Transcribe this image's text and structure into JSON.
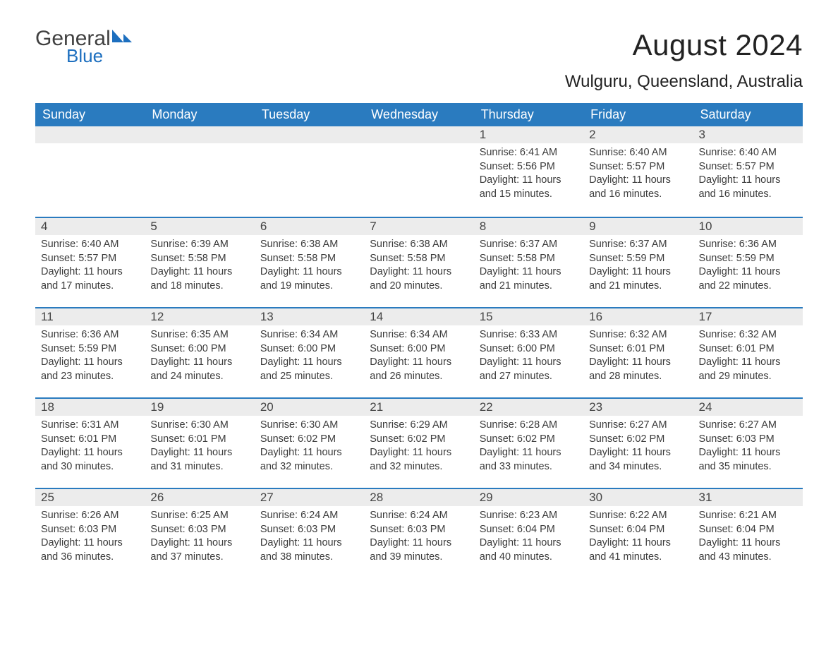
{
  "brand": {
    "word1": "General",
    "word2": "Blue",
    "word1_color": "#404040",
    "word2_color": "#1d6fbf",
    "mark_color": "#1d6fbf"
  },
  "title": "August 2024",
  "location": "Wulguru, Queensland, Australia",
  "colors": {
    "header_bg": "#2a7bbf",
    "header_text": "#ffffff",
    "daynum_bg": "#ececec",
    "row_border": "#2a7bbf",
    "body_text": "#3b3b3b",
    "page_bg": "#ffffff"
  },
  "day_headers": [
    "Sunday",
    "Monday",
    "Tuesday",
    "Wednesday",
    "Thursday",
    "Friday",
    "Saturday"
  ],
  "weeks": [
    [
      null,
      null,
      null,
      null,
      {
        "n": "1",
        "sunrise": "6:41 AM",
        "sunset": "5:56 PM",
        "daylight": "11 hours and 15 minutes."
      },
      {
        "n": "2",
        "sunrise": "6:40 AM",
        "sunset": "5:57 PM",
        "daylight": "11 hours and 16 minutes."
      },
      {
        "n": "3",
        "sunrise": "6:40 AM",
        "sunset": "5:57 PM",
        "daylight": "11 hours and 16 minutes."
      }
    ],
    [
      {
        "n": "4",
        "sunrise": "6:40 AM",
        "sunset": "5:57 PM",
        "daylight": "11 hours and 17 minutes."
      },
      {
        "n": "5",
        "sunrise": "6:39 AM",
        "sunset": "5:58 PM",
        "daylight": "11 hours and 18 minutes."
      },
      {
        "n": "6",
        "sunrise": "6:38 AM",
        "sunset": "5:58 PM",
        "daylight": "11 hours and 19 minutes."
      },
      {
        "n": "7",
        "sunrise": "6:38 AM",
        "sunset": "5:58 PM",
        "daylight": "11 hours and 20 minutes."
      },
      {
        "n": "8",
        "sunrise": "6:37 AM",
        "sunset": "5:58 PM",
        "daylight": "11 hours and 21 minutes."
      },
      {
        "n": "9",
        "sunrise": "6:37 AM",
        "sunset": "5:59 PM",
        "daylight": "11 hours and 21 minutes."
      },
      {
        "n": "10",
        "sunrise": "6:36 AM",
        "sunset": "5:59 PM",
        "daylight": "11 hours and 22 minutes."
      }
    ],
    [
      {
        "n": "11",
        "sunrise": "6:36 AM",
        "sunset": "5:59 PM",
        "daylight": "11 hours and 23 minutes."
      },
      {
        "n": "12",
        "sunrise": "6:35 AM",
        "sunset": "6:00 PM",
        "daylight": "11 hours and 24 minutes."
      },
      {
        "n": "13",
        "sunrise": "6:34 AM",
        "sunset": "6:00 PM",
        "daylight": "11 hours and 25 minutes."
      },
      {
        "n": "14",
        "sunrise": "6:34 AM",
        "sunset": "6:00 PM",
        "daylight": "11 hours and 26 minutes."
      },
      {
        "n": "15",
        "sunrise": "6:33 AM",
        "sunset": "6:00 PM",
        "daylight": "11 hours and 27 minutes."
      },
      {
        "n": "16",
        "sunrise": "6:32 AM",
        "sunset": "6:01 PM",
        "daylight": "11 hours and 28 minutes."
      },
      {
        "n": "17",
        "sunrise": "6:32 AM",
        "sunset": "6:01 PM",
        "daylight": "11 hours and 29 minutes."
      }
    ],
    [
      {
        "n": "18",
        "sunrise": "6:31 AM",
        "sunset": "6:01 PM",
        "daylight": "11 hours and 30 minutes."
      },
      {
        "n": "19",
        "sunrise": "6:30 AM",
        "sunset": "6:01 PM",
        "daylight": "11 hours and 31 minutes."
      },
      {
        "n": "20",
        "sunrise": "6:30 AM",
        "sunset": "6:02 PM",
        "daylight": "11 hours and 32 minutes."
      },
      {
        "n": "21",
        "sunrise": "6:29 AM",
        "sunset": "6:02 PM",
        "daylight": "11 hours and 32 minutes."
      },
      {
        "n": "22",
        "sunrise": "6:28 AM",
        "sunset": "6:02 PM",
        "daylight": "11 hours and 33 minutes."
      },
      {
        "n": "23",
        "sunrise": "6:27 AM",
        "sunset": "6:02 PM",
        "daylight": "11 hours and 34 minutes."
      },
      {
        "n": "24",
        "sunrise": "6:27 AM",
        "sunset": "6:03 PM",
        "daylight": "11 hours and 35 minutes."
      }
    ],
    [
      {
        "n": "25",
        "sunrise": "6:26 AM",
        "sunset": "6:03 PM",
        "daylight": "11 hours and 36 minutes."
      },
      {
        "n": "26",
        "sunrise": "6:25 AM",
        "sunset": "6:03 PM",
        "daylight": "11 hours and 37 minutes."
      },
      {
        "n": "27",
        "sunrise": "6:24 AM",
        "sunset": "6:03 PM",
        "daylight": "11 hours and 38 minutes."
      },
      {
        "n": "28",
        "sunrise": "6:24 AM",
        "sunset": "6:03 PM",
        "daylight": "11 hours and 39 minutes."
      },
      {
        "n": "29",
        "sunrise": "6:23 AM",
        "sunset": "6:04 PM",
        "daylight": "11 hours and 40 minutes."
      },
      {
        "n": "30",
        "sunrise": "6:22 AM",
        "sunset": "6:04 PM",
        "daylight": "11 hours and 41 minutes."
      },
      {
        "n": "31",
        "sunrise": "6:21 AM",
        "sunset": "6:04 PM",
        "daylight": "11 hours and 43 minutes."
      }
    ]
  ],
  "labels": {
    "sunrise": "Sunrise:",
    "sunset": "Sunset:",
    "daylight": "Daylight:"
  }
}
